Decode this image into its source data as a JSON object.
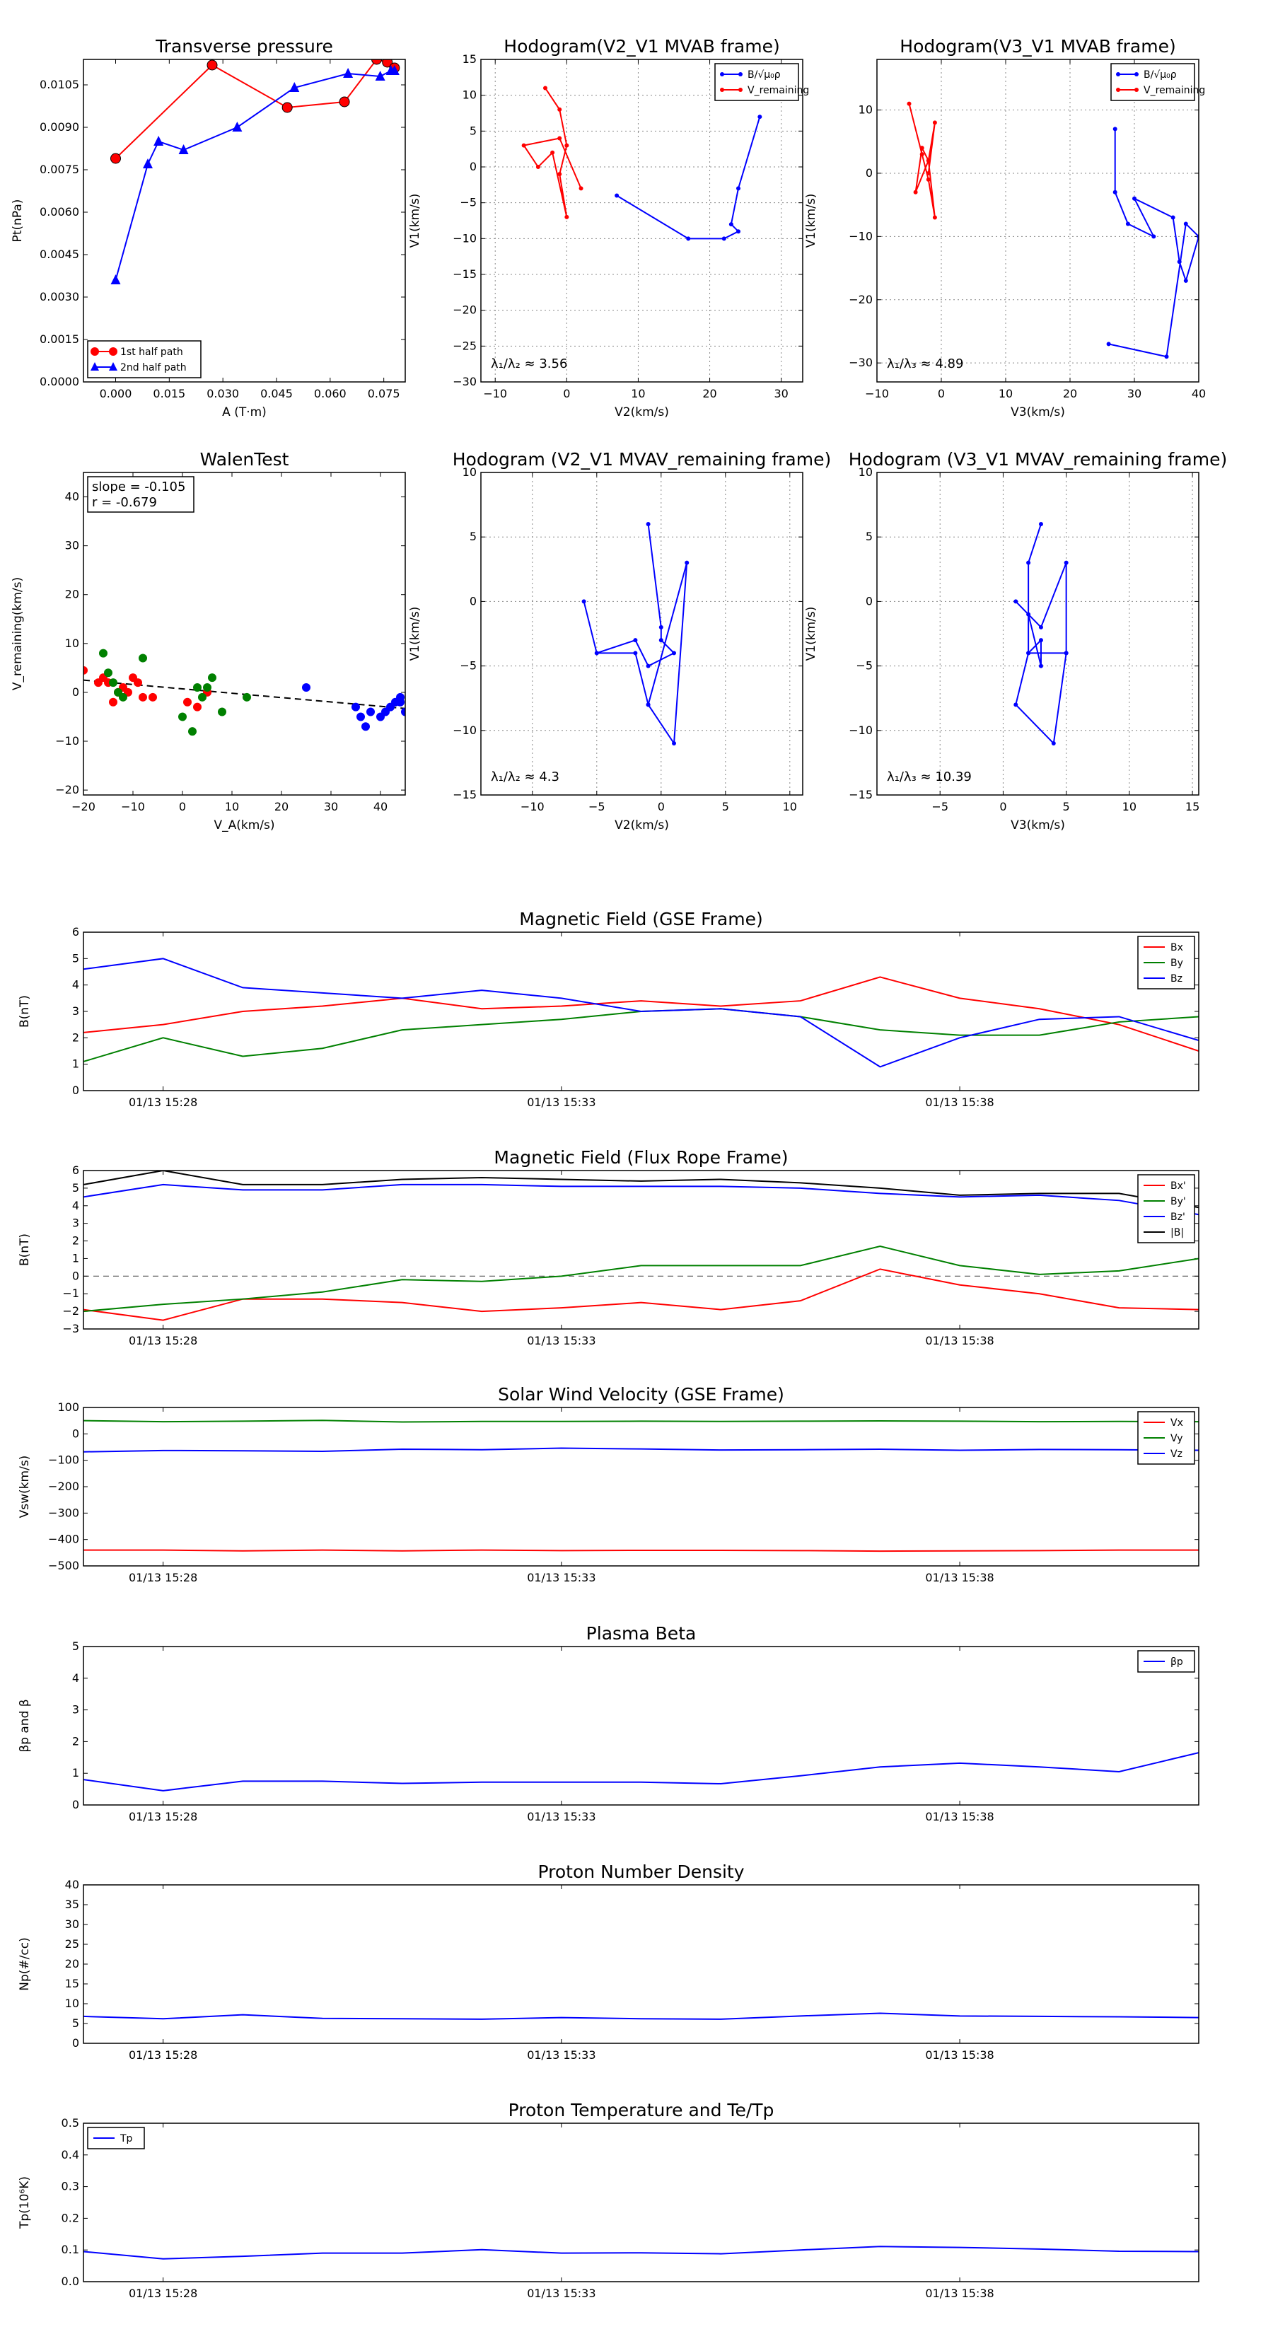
{
  "chart_data": [
    {
      "id": "transverse-pressure",
      "type": "line",
      "title": "Transverse pressure",
      "xlabel": "A (T·m)",
      "ylabel": "Pt(nPa)",
      "xlim": [
        -0.009,
        0.081
      ],
      "ylim": [
        0,
        0.0114
      ],
      "xticks": [
        0.0,
        0.015,
        0.03,
        0.045,
        0.06,
        0.075
      ],
      "yticks": [
        0.0,
        0.0015,
        0.003,
        0.0045,
        0.006,
        0.0075,
        0.009,
        0.0105
      ],
      "xtick_labels": [
        "0.000",
        "0.015",
        "0.030",
        "0.045",
        "0.060",
        "0.075"
      ],
      "ytick_labels": [
        "0.0000",
        "0.0015",
        "0.0030",
        "0.0045",
        "0.0060",
        "0.0075",
        "0.0090",
        "0.0105"
      ],
      "grid": false,
      "legend": "lower-left",
      "series": [
        {
          "name": "1st half path",
          "color": "#ff0000",
          "marker": "circle",
          "x": [
            0.0,
            0.027,
            0.048,
            0.064,
            0.073,
            0.076,
            0.078
          ],
          "y": [
            0.0079,
            0.0112,
            0.0097,
            0.0099,
            0.0114,
            0.0113,
            0.0111
          ]
        },
        {
          "name": "2nd half path",
          "color": "#0000ff",
          "marker": "triangle",
          "x": [
            0.0,
            0.009,
            0.012,
            0.019,
            0.034,
            0.05,
            0.065,
            0.074,
            0.077,
            0.078
          ],
          "y": [
            0.0036,
            0.0077,
            0.0085,
            0.0082,
            0.009,
            0.0104,
            0.0109,
            0.0108,
            0.011,
            0.011
          ]
        }
      ]
    },
    {
      "id": "hodogram-v2v1-mvab",
      "type": "line",
      "title": "Hodogram(V2_V1 MVAB frame)",
      "xlabel": "V2(km/s)",
      "ylabel": "V1(km/s)",
      "xlim": [
        -12,
        33
      ],
      "ylim": [
        -30,
        15
      ],
      "xticks": [
        -10,
        0,
        10,
        20,
        30
      ],
      "yticks": [
        -30,
        -25,
        -20,
        -15,
        -10,
        -5,
        0,
        5,
        10,
        15
      ],
      "grid": true,
      "legend": "top-right",
      "annotation": "λ₁/λ₂ ≈ 3.56",
      "series": [
        {
          "name": "B/√μ₀ρ",
          "color": "#0000ff",
          "marker": "dot",
          "x": [
            27,
            24,
            23,
            24,
            22,
            17,
            7
          ],
          "y": [
            7,
            -3,
            -8,
            -9,
            -10,
            -10,
            -4
          ]
        },
        {
          "name": "V_remaining",
          "color": "#ff0000",
          "marker": "dot",
          "x": [
            -3,
            -1,
            0,
            -1,
            0,
            -2,
            -4,
            -6,
            -1,
            2
          ],
          "y": [
            11,
            8,
            3,
            -1,
            -7,
            2,
            0,
            3,
            4,
            -3
          ]
        }
      ]
    },
    {
      "id": "hodogram-v3v1-mvab",
      "type": "line",
      "title": "Hodogram(V3_V1 MVAB frame)",
      "xlabel": "V3(km/s)",
      "ylabel": "V1(km/s)",
      "xlim": [
        -10,
        40
      ],
      "ylim": [
        -33,
        18
      ],
      "xticks": [
        -10,
        0,
        10,
        20,
        30,
        40
      ],
      "yticks": [
        -30,
        -20,
        -10,
        0,
        10
      ],
      "grid": true,
      "legend": "top-right",
      "annotation": "λ₁/λ₃ ≈ 4.89",
      "series": [
        {
          "name": "B/√μ₀ρ",
          "color": "#0000ff",
          "marker": "dot",
          "x": [
            27,
            27,
            29,
            33,
            30,
            36,
            37,
            38,
            40,
            38,
            35,
            26
          ],
          "y": [
            7,
            -3,
            -8,
            -10,
            -4,
            -7,
            -14,
            -17,
            -10,
            -8,
            -29,
            -27
          ]
        },
        {
          "name": "V_remaining",
          "color": "#ff0000",
          "marker": "dot",
          "x": [
            -5,
            -3,
            -2,
            -1,
            -2,
            -3,
            -4,
            -2,
            -1,
            -2
          ],
          "y": [
            11,
            3,
            -1,
            -7,
            2,
            4,
            -3,
            2,
            8,
            0
          ]
        }
      ]
    },
    {
      "id": "walen-test",
      "type": "scatter",
      "title": "WalenTest",
      "xlabel": "V_A(km/s)",
      "ylabel": "V_remaining(km/s)",
      "xlim": [
        -20,
        45
      ],
      "ylim": [
        -21,
        45
      ],
      "xticks": [
        -20,
        -10,
        0,
        10,
        20,
        30,
        40
      ],
      "yticks": [
        -20,
        -10,
        0,
        10,
        20,
        30,
        40
      ],
      "grid": false,
      "annotation_slope": "slope = -0.105",
      "annotation_r": "r = -0.679",
      "fit_line": {
        "x": [
          -20,
          45
        ],
        "y": [
          2.5,
          -3.3
        ]
      },
      "series": [
        {
          "color": "#ff0000",
          "x": [
            -20,
            -17,
            -16,
            -15,
            -14,
            -13,
            -12,
            -11,
            -10,
            -9,
            -8,
            -6,
            1,
            3,
            5
          ],
          "y": [
            4.5,
            2,
            3,
            2,
            -2,
            0,
            1,
            0,
            3,
            2,
            -1,
            -1,
            -2,
            -3,
            0
          ]
        },
        {
          "color": "#008000",
          "x": [
            -16,
            -15,
            -14,
            -13,
            -12,
            -8,
            0,
            2,
            3,
            4,
            5,
            6,
            8,
            13
          ],
          "y": [
            8,
            4,
            2,
            0,
            -1,
            7,
            -5,
            -8,
            1,
            -1,
            1,
            3,
            -4,
            -1
          ]
        },
        {
          "color": "#0000ff",
          "x": [
            25,
            35,
            36,
            37,
            38,
            40,
            41,
            42,
            43,
            44,
            45,
            44
          ],
          "y": [
            1,
            -3,
            -5,
            -7,
            -4,
            -5,
            -4,
            -3,
            -2,
            -1,
            -4,
            -2
          ]
        }
      ]
    },
    {
      "id": "hodogram-v2v1-mvav",
      "type": "line",
      "title": "Hodogram (V2_V1 MVAV_remaining frame)",
      "xlabel": "V2(km/s)",
      "ylabel": "V1(km/s)",
      "xlim": [
        -14,
        11
      ],
      "ylim": [
        -15,
        10
      ],
      "xticks": [
        -10,
        -5,
        0,
        5,
        10
      ],
      "yticks": [
        -15,
        -10,
        -5,
        0,
        5,
        10
      ],
      "grid": true,
      "annotation": "λ₁/λ₂ ≈ 4.3",
      "series": [
        {
          "color": "#0000ff",
          "marker": "dot",
          "x": [
            -1,
            0,
            0,
            1,
            -1,
            -2,
            -5,
            -6,
            -5,
            -2,
            -1,
            1,
            2,
            -1
          ],
          "y": [
            6,
            -2,
            -3,
            -4,
            -5,
            -3,
            -4,
            0,
            -4,
            -4,
            -8,
            -11,
            3,
            -8
          ]
        }
      ]
    },
    {
      "id": "hodogram-v3v1-mvav",
      "type": "line",
      "title": "Hodogram (V3_V1 MVAV_remaining frame)",
      "xlabel": "V3(km/s)",
      "ylabel": "V1(km/s)",
      "xlim": [
        -10,
        15.5
      ],
      "ylim": [
        -15,
        10
      ],
      "xticks": [
        -5,
        0,
        5,
        10,
        15
      ],
      "yticks": [
        -15,
        -10,
        -5,
        0,
        5,
        10
      ],
      "grid": true,
      "annotation": "λ₁/λ₃ ≈ 10.39",
      "series": [
        {
          "color": "#0000ff",
          "marker": "dot",
          "x": [
            3,
            2,
            2,
            3,
            3,
            2,
            1,
            3,
            5,
            5,
            2,
            1,
            4,
            5
          ],
          "y": [
            6,
            3,
            -4,
            -3,
            -5,
            -1,
            0,
            -2,
            3,
            -4,
            -4,
            -8,
            -11,
            -4
          ]
        }
      ]
    },
    {
      "id": "magnetic-field-gse",
      "type": "line",
      "title": "Magnetic Field (GSE Frame)",
      "ylabel": "B(nT)",
      "xlim": [
        0,
        14
      ],
      "ylim": [
        0,
        6
      ],
      "yticks": [
        0,
        1,
        2,
        3,
        4,
        5,
        6
      ],
      "xticks": [
        1,
        6,
        11
      ],
      "xtick_labels": [
        "01/13 15:28",
        "01/13 15:33",
        "01/13 15:38"
      ],
      "grid": false,
      "legend": "top-right",
      "x": [
        0,
        1,
        2,
        3,
        4,
        5,
        6,
        7,
        8,
        9,
        10,
        11,
        12,
        13,
        14
      ],
      "series": [
        {
          "name": "Bx",
          "color": "#ff0000",
          "values": [
            2.2,
            2.5,
            3.0,
            3.2,
            3.5,
            3.1,
            3.2,
            3.4,
            3.2,
            3.4,
            4.3,
            3.5,
            3.1,
            2.5,
            1.5
          ]
        },
        {
          "name": "By",
          "color": "#008000",
          "values": [
            1.1,
            2.0,
            1.3,
            1.6,
            2.3,
            2.5,
            2.7,
            3.0,
            3.1,
            2.8,
            2.3,
            2.1,
            2.1,
            2.6,
            2.8
          ]
        },
        {
          "name": "Bz",
          "color": "#0000ff",
          "values": [
            4.6,
            5.0,
            3.9,
            3.7,
            3.5,
            3.8,
            3.5,
            3.0,
            3.1,
            2.8,
            0.9,
            2.0,
            2.7,
            2.8,
            1.9
          ]
        }
      ]
    },
    {
      "id": "magnetic-field-flux-rope",
      "type": "line",
      "title": "Magnetic Field (Flux Rope Frame)",
      "ylabel": "B(nT)",
      "xlim": [
        0,
        14
      ],
      "ylim": [
        -3,
        6
      ],
      "yticks": [
        -3,
        -2,
        -1,
        0,
        1,
        2,
        3,
        4,
        5,
        6
      ],
      "xticks": [
        1,
        6,
        11
      ],
      "xtick_labels": [
        "01/13 15:28",
        "01/13 15:33",
        "01/13 15:38"
      ],
      "grid": false,
      "zero_line": true,
      "legend": "top-right",
      "x": [
        0,
        1,
        2,
        3,
        4,
        5,
        6,
        7,
        8,
        9,
        10,
        11,
        12,
        13,
        14
      ],
      "series": [
        {
          "name": "Bx'",
          "color": "#ff0000",
          "values": [
            -1.9,
            -2.5,
            -1.3,
            -1.3,
            -1.5,
            -2.0,
            -1.8,
            -1.5,
            -1.9,
            -1.4,
            0.4,
            -0.5,
            -1.0,
            -1.8,
            -1.9
          ]
        },
        {
          "name": "By'",
          "color": "#008000",
          "values": [
            -2.0,
            -1.6,
            -1.3,
            -0.9,
            -0.2,
            -0.3,
            0.0,
            0.6,
            0.6,
            0.6,
            1.7,
            0.6,
            0.1,
            0.3,
            1.0
          ]
        },
        {
          "name": "Bz'",
          "color": "#0000ff",
          "values": [
            4.5,
            5.2,
            4.9,
            4.9,
            5.2,
            5.2,
            5.1,
            5.1,
            5.1,
            5.0,
            4.7,
            4.5,
            4.6,
            4.3,
            3.5
          ]
        },
        {
          "name": "|B|",
          "color": "#000000",
          "values": [
            5.2,
            6.0,
            5.2,
            5.2,
            5.5,
            5.6,
            5.5,
            5.4,
            5.5,
            5.3,
            5.0,
            4.6,
            4.7,
            4.7,
            3.9
          ]
        }
      ]
    },
    {
      "id": "solar-wind-velocity",
      "type": "line",
      "title": "Solar Wind Velocity (GSE Frame)",
      "ylabel": "Vsw(km/s)",
      "xlim": [
        0,
        14
      ],
      "ylim": [
        -500,
        100
      ],
      "yticks": [
        -500,
        -400,
        -300,
        -200,
        -100,
        0,
        100
      ],
      "ytick_labels": [
        "−500",
        "−400",
        "−300",
        "−200",
        "−100",
        "0",
        "100"
      ],
      "xticks": [
        1,
        6,
        11
      ],
      "xtick_labels": [
        "01/13 15:28",
        "01/13 15:33",
        "01/13 15:38"
      ],
      "grid": false,
      "legend": "top-right",
      "x": [
        0,
        1,
        2,
        3,
        4,
        5,
        6,
        7,
        8,
        9,
        10,
        11,
        12,
        13,
        14
      ],
      "series": [
        {
          "name": "Vx",
          "color": "#ff0000",
          "values": [
            -440,
            -440,
            -443,
            -440,
            -443,
            -440,
            -442,
            -441,
            -441,
            -442,
            -444,
            -443,
            -442,
            -440,
            -440
          ]
        },
        {
          "name": "Vy",
          "color": "#008000",
          "values": [
            50,
            46,
            48,
            51,
            45,
            47,
            47,
            48,
            47,
            48,
            49,
            48,
            46,
            47,
            46
          ]
        },
        {
          "name": "Vz",
          "color": "#0000ff",
          "values": [
            -68,
            -63,
            -64,
            -66,
            -58,
            -60,
            -54,
            -57,
            -61,
            -60,
            -58,
            -62,
            -59,
            -60,
            -62
          ]
        }
      ]
    },
    {
      "id": "plasma-beta",
      "type": "line",
      "title": "Plasma Beta",
      "ylabel": "βp and β",
      "xlim": [
        0,
        14
      ],
      "ylim": [
        0,
        5
      ],
      "yticks": [
        0,
        1,
        2,
        3,
        4,
        5
      ],
      "xticks": [
        1,
        6,
        11
      ],
      "xtick_labels": [
        "01/13 15:28",
        "01/13 15:33",
        "01/13 15:38"
      ],
      "grid": false,
      "legend": "top-right",
      "x": [
        0,
        1,
        2,
        3,
        4,
        5,
        6,
        7,
        8,
        9,
        10,
        11,
        12,
        13,
        14
      ],
      "series": [
        {
          "name": "βp",
          "color": "#0000ff",
          "values": [
            0.8,
            0.45,
            0.75,
            0.75,
            0.68,
            0.72,
            0.72,
            0.72,
            0.67,
            0.92,
            1.2,
            1.32,
            1.2,
            1.05,
            1.65
          ]
        }
      ]
    },
    {
      "id": "proton-number-density",
      "type": "line",
      "title": "Proton Number Density",
      "ylabel": "Np(#/cc)",
      "xlim": [
        0,
        14
      ],
      "ylim": [
        0,
        40
      ],
      "yticks": [
        0,
        5,
        10,
        15,
        20,
        25,
        30,
        35,
        40
      ],
      "xticks": [
        1,
        6,
        11
      ],
      "xtick_labels": [
        "01/13 15:28",
        "01/13 15:33",
        "01/13 15:38"
      ],
      "grid": false,
      "x": [
        0,
        1,
        2,
        3,
        4,
        5,
        6,
        7,
        8,
        9,
        10,
        11,
        12,
        13,
        14
      ],
      "series": [
        {
          "color": "#0000ff",
          "values": [
            6.8,
            6.2,
            7.2,
            6.3,
            6.2,
            6.1,
            6.5,
            6.2,
            6.1,
            6.9,
            7.6,
            6.9,
            6.8,
            6.7,
            6.5
          ]
        }
      ]
    },
    {
      "id": "proton-temperature",
      "type": "line",
      "title": "Proton Temperature and Te/Tp",
      "ylabel": "Tp(10⁶K)",
      "xlim": [
        0,
        14
      ],
      "ylim": [
        0,
        0.5
      ],
      "yticks": [
        0,
        0.1,
        0.2,
        0.3,
        0.4,
        0.5
      ],
      "ytick_labels": [
        "0.0",
        "0.1",
        "0.2",
        "0.3",
        "0.4",
        "0.5"
      ],
      "xticks": [
        1,
        6,
        11
      ],
      "xtick_labels": [
        "01/13 15:28",
        "01/13 15:33",
        "01/13 15:38"
      ],
      "grid": false,
      "legend": "top-left",
      "x": [
        0,
        1,
        2,
        3,
        4,
        5,
        6,
        7,
        8,
        9,
        10,
        11,
        12,
        13,
        14
      ],
      "series": [
        {
          "name": "Tp",
          "color": "#0000ff",
          "values": [
            0.095,
            0.072,
            0.08,
            0.09,
            0.09,
            0.101,
            0.09,
            0.091,
            0.088,
            0.1,
            0.111,
            0.108,
            0.103,
            0.096,
            0.095
          ]
        }
      ]
    }
  ]
}
